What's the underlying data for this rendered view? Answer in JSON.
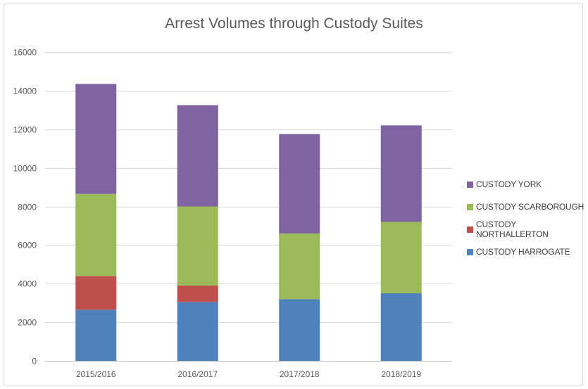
{
  "chart_data": {
    "type": "bar",
    "stacked": true,
    "title": "Arrest Volumes through Custody Suites",
    "xlabel": "",
    "ylabel": "",
    "categories": [
      "2015/2016",
      "2016/2017",
      "2017/2018",
      "2018/2019"
    ],
    "ylim": [
      0,
      16000
    ],
    "yticks": [
      0,
      2000,
      4000,
      6000,
      8000,
      10000,
      12000,
      14000,
      16000
    ],
    "grid": true,
    "legend_position": "right",
    "series": [
      {
        "name": "CUSTODY HARROGATE",
        "color": "#4f81bd",
        "values": [
          2650,
          3050,
          3200,
          3500
        ]
      },
      {
        "name": "CUSTODY NORTHALLERTON",
        "color": "#c0504d",
        "values": [
          1750,
          850,
          0,
          0
        ]
      },
      {
        "name": "CUSTODY SCARBOROUGH",
        "color": "#9bbb59",
        "values": [
          4250,
          4100,
          3400,
          3700
        ]
      },
      {
        "name": "CUSTODY YORK",
        "color": "#8064a2",
        "values": [
          5700,
          5250,
          5150,
          5000
        ]
      }
    ],
    "legend_order": [
      "CUSTODY YORK",
      "CUSTODY SCARBOROUGH",
      "CUSTODY NORTHALLERTON",
      "CUSTODY HARROGATE"
    ]
  }
}
